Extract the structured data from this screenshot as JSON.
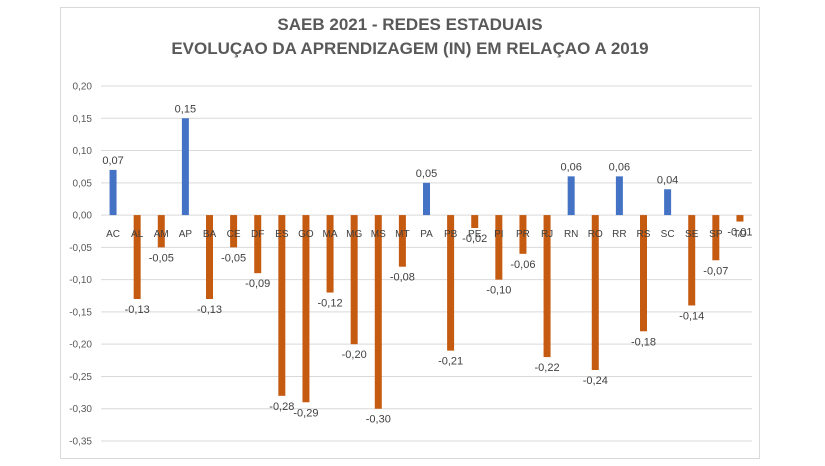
{
  "chart_data": {
    "type": "bar",
    "title": "SAEB 2021 - REDES ESTADUAIS",
    "subtitle": "EVOLUÇAO DA APRENDIZAGEM (IN) EM RELAÇAO A 2019",
    "xlabel": "",
    "ylabel": "",
    "ylim": [
      -0.35,
      0.2
    ],
    "yticks": [
      "0,20",
      "0,15",
      "0,10",
      "0,05",
      "0,00",
      "-0,05",
      "-0,10",
      "-0,15",
      "-0,20",
      "-0,25",
      "-0,30",
      "-0,35"
    ],
    "grid": true,
    "categories": [
      "AC",
      "AL",
      "AM",
      "AP",
      "BA",
      "CE",
      "DF",
      "ES",
      "GO",
      "MA",
      "MG",
      "MS",
      "MT",
      "PA",
      "PB",
      "PE",
      "PI",
      "PR",
      "RJ",
      "RN",
      "RO",
      "RR",
      "RS",
      "SC",
      "SE",
      "SP",
      "TO"
    ],
    "values": [
      0.07,
      -0.13,
      -0.05,
      0.15,
      -0.13,
      -0.05,
      -0.09,
      -0.28,
      -0.29,
      -0.12,
      -0.2,
      -0.3,
      -0.08,
      0.05,
      -0.21,
      -0.02,
      -0.1,
      -0.06,
      -0.22,
      0.06,
      -0.24,
      0.06,
      -0.18,
      0.04,
      -0.14,
      -0.07,
      -0.01
    ],
    "value_labels": [
      "0,07",
      "-0,13",
      "-0,05",
      "0,15",
      "-0,13",
      "-0,05",
      "-0,09",
      "-0,28",
      "-0,29",
      "-0,12",
      "-0,20",
      "-0,30",
      "-0,08",
      "0,05",
      "-0,21",
      "-0,02",
      "-0,10",
      "-0,06",
      "-0,22",
      "0,06",
      "-0,24",
      "0,06",
      "-0,18",
      "0,04",
      "-0,14",
      "-0,07",
      "-0,01"
    ],
    "colors": {
      "positive": "#4472c4",
      "negative": "#c55a11",
      "grid": "#d9d9d9",
      "text": "#595959"
    }
  }
}
